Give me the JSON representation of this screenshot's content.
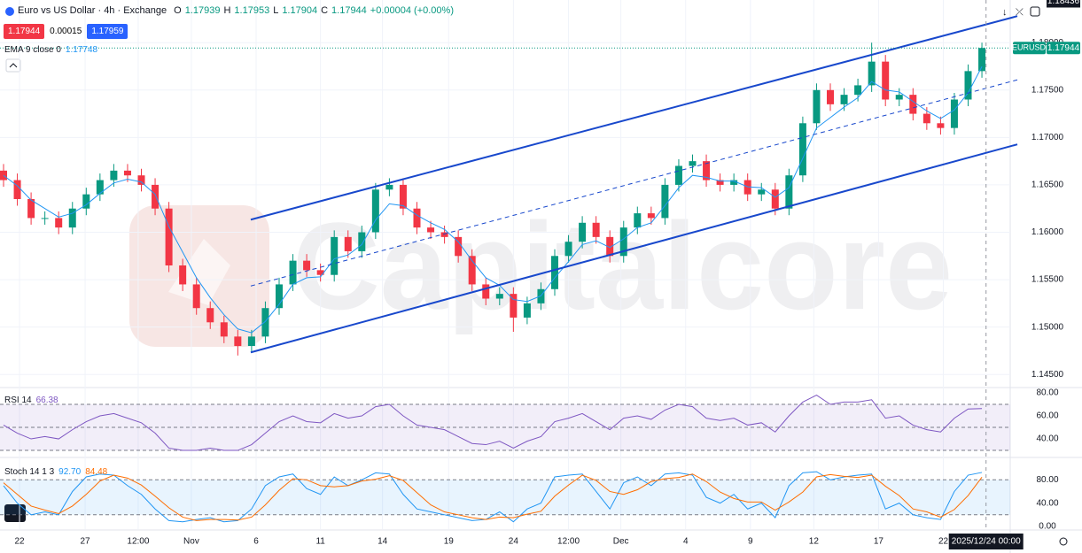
{
  "chart_data": {
    "type": "candlestick",
    "title": "Euro vs US Dollar · 4h · Exchange",
    "header": {
      "labels": [
        "O",
        "H",
        "L",
        "C"
      ],
      "values": [
        1.17939,
        1.17953,
        1.17904,
        1.17944
      ],
      "change": "+0.00004 (+0.00%)"
    },
    "quote": {
      "bid": 1.17944,
      "spread": 0.00015,
      "ask": 1.17959
    },
    "symbol": "EURUSD",
    "up_color": "#089981",
    "down_color": "#f23645",
    "open": [
      1.1665,
      1.1655,
      1.1635,
      1.1615,
      1.1615,
      1.1605,
      1.1625,
      1.164,
      1.1655,
      1.1665,
      1.166,
      1.165,
      1.1625,
      1.1565,
      1.1545,
      1.152,
      1.1505,
      1.149,
      1.148,
      1.149,
      1.152,
      1.1545,
      1.157,
      1.156,
      1.1555,
      1.1595,
      1.158,
      1.16,
      1.1645,
      1.165,
      1.1625,
      1.1605,
      1.16,
      1.1595,
      1.1575,
      1.1545,
      1.153,
      1.1535,
      1.151,
      1.1525,
      1.154,
      1.1575,
      1.159,
      1.161,
      1.1595,
      1.1575,
      1.1605,
      1.162,
      1.1615,
      1.165,
      1.167,
      1.1675,
      1.1655,
      1.165,
      1.1655,
      1.164,
      1.1645,
      1.1625,
      1.166,
      1.1715,
      1.175,
      1.1735,
      1.1745,
      1.1755,
      1.178,
      1.174,
      1.1745,
      1.1725,
      1.1715,
      1.171,
      1.174,
      1.177
    ],
    "high": [
      1.1672,
      1.1662,
      1.1642,
      1.1622,
      1.1622,
      1.1632,
      1.1647,
      1.1662,
      1.1672,
      1.1672,
      1.1667,
      1.1657,
      1.1632,
      1.1572,
      1.1552,
      1.1527,
      1.1512,
      1.1497,
      1.1497,
      1.1527,
      1.1552,
      1.1577,
      1.1577,
      1.1567,
      1.1602,
      1.1602,
      1.1607,
      1.1652,
      1.1657,
      1.1657,
      1.1632,
      1.1612,
      1.1607,
      1.1602,
      1.1582,
      1.1552,
      1.1542,
      1.1542,
      1.1532,
      1.1547,
      1.1582,
      1.1597,
      1.1617,
      1.1617,
      1.1602,
      1.1612,
      1.1627,
      1.1627,
      1.1657,
      1.1677,
      1.1682,
      1.1682,
      1.1662,
      1.1662,
      1.1662,
      1.1652,
      1.1652,
      1.1667,
      1.1722,
      1.1757,
      1.1757,
      1.1752,
      1.1762,
      1.18,
      1.1787,
      1.1752,
      1.1752,
      1.1732,
      1.1722,
      1.1747,
      1.1777,
      1.18
    ],
    "low": [
      1.1648,
      1.1628,
      1.1608,
      1.1608,
      1.1598,
      1.1598,
      1.1618,
      1.1633,
      1.1648,
      1.1653,
      1.1643,
      1.1618,
      1.1558,
      1.1538,
      1.1513,
      1.1498,
      1.1483,
      1.147,
      1.1473,
      1.1483,
      1.1513,
      1.1538,
      1.1553,
      1.1548,
      1.1548,
      1.1573,
      1.1573,
      1.1593,
      1.1638,
      1.1618,
      1.1598,
      1.1593,
      1.1588,
      1.1568,
      1.1538,
      1.1523,
      1.1523,
      1.1495,
      1.1503,
      1.1518,
      1.1533,
      1.1568,
      1.1583,
      1.1588,
      1.1568,
      1.1568,
      1.1598,
      1.1608,
      1.1608,
      1.1643,
      1.1663,
      1.1648,
      1.1643,
      1.1643,
      1.1633,
      1.1633,
      1.1618,
      1.1618,
      1.1653,
      1.1708,
      1.1728,
      1.1728,
      1.1738,
      1.1748,
      1.1733,
      1.1733,
      1.1718,
      1.1708,
      1.1703,
      1.1703,
      1.1733,
      1.1763
    ],
    "close": [
      1.1655,
      1.1635,
      1.1615,
      1.1615,
      1.1605,
      1.1625,
      1.164,
      1.1655,
      1.1665,
      1.166,
      1.165,
      1.1625,
      1.1565,
      1.1545,
      1.152,
      1.1505,
      1.149,
      1.148,
      1.149,
      1.152,
      1.1545,
      1.157,
      1.156,
      1.1555,
      1.1595,
      1.158,
      1.16,
      1.1645,
      1.165,
      1.1625,
      1.1605,
      1.16,
      1.1595,
      1.1575,
      1.1545,
      1.153,
      1.1535,
      1.151,
      1.1525,
      1.154,
      1.1575,
      1.159,
      1.161,
      1.1595,
      1.1575,
      1.1605,
      1.162,
      1.1615,
      1.165,
      1.167,
      1.1675,
      1.1655,
      1.165,
      1.1655,
      1.164,
      1.1645,
      1.1625,
      1.166,
      1.1715,
      1.175,
      1.1735,
      1.1745,
      1.1755,
      1.178,
      1.174,
      1.1745,
      1.1725,
      1.1715,
      1.171,
      1.174,
      1.177,
      1.17944
    ],
    "ylim": [
      1.14362,
      1.1845
    ],
    "yticks": [
      {
        "value": 1.145,
        "label": "1.14500"
      },
      {
        "value": 1.15,
        "label": "1.15000"
      },
      {
        "value": 1.155,
        "label": "1.15500"
      },
      {
        "value": 1.16,
        "label": "1.16000"
      },
      {
        "value": 1.165,
        "label": "1.16500"
      },
      {
        "value": 1.17,
        "label": "1.17000"
      },
      {
        "value": 1.175,
        "label": "1.17500"
      },
      {
        "value": 1.18,
        "label": "1.18000"
      }
    ],
    "xticks": [
      {
        "value": 1.16,
        "label": "22"
      },
      {
        "value": 5.92,
        "label": "27"
      },
      {
        "value": 9.77,
        "label": "12:00"
      },
      {
        "value": 13.63,
        "label": "Nov"
      },
      {
        "value": 18.33,
        "label": "6"
      },
      {
        "value": 23.0,
        "label": "11"
      },
      {
        "value": 27.5,
        "label": "14"
      },
      {
        "value": 32.3,
        "label": "19"
      },
      {
        "value": 37.0,
        "label": "24"
      },
      {
        "value": 41.0,
        "label": "12:00"
      },
      {
        "value": 44.8,
        "label": "Dec"
      },
      {
        "value": 49.5,
        "label": "4"
      },
      {
        "value": 54.2,
        "label": "9"
      },
      {
        "value": 58.8,
        "label": "12"
      },
      {
        "value": 63.5,
        "label": "17"
      },
      {
        "value": 68.2,
        "label": "22"
      }
    ],
    "ema": {
      "name": "EMA 9 close 0",
      "color": "#2196f3",
      "values": [
        1.166,
        1.1649,
        1.1634,
        1.1625,
        1.1616,
        1.162,
        1.1629,
        1.1641,
        1.1652,
        1.1656,
        1.1653,
        1.164,
        1.1606,
        1.1579,
        1.1552,
        1.1531,
        1.1513,
        1.1498,
        1.1494,
        1.1506,
        1.1524,
        1.1545,
        1.1552,
        1.1553,
        1.1572,
        1.1576,
        1.1587,
        1.1613,
        1.163,
        1.1628,
        1.1618,
        1.161,
        1.1603,
        1.159,
        1.157,
        1.1552,
        1.1544,
        1.1529,
        1.1527,
        1.1533,
        1.1552,
        1.1569,
        1.1587,
        1.1591,
        1.1584,
        1.1593,
        1.1605,
        1.161,
        1.1628,
        1.1647,
        1.166,
        1.1658,
        1.1654,
        1.1654,
        1.1648,
        1.1647,
        1.1637,
        1.1647,
        1.1678,
        1.171,
        1.1721,
        1.1732,
        1.1742,
        1.1759,
        1.175,
        1.1748,
        1.1738,
        1.1728,
        1.172,
        1.1729,
        1.1747,
        1.17748
      ]
    },
    "channel": {
      "color": "#1848cc",
      "lines": [
        {
          "x": [
            17.94,
            73.57
          ],
          "y": [
            1.16133,
            1.1828
          ],
          "dashed": false
        },
        {
          "x": [
            17.94,
            73.57
          ],
          "y": [
            1.15433,
            1.17608
          ],
          "dashed": true
        },
        {
          "x": [
            17.94,
            73.57
          ],
          "y": [
            1.14733,
            1.16927
          ],
          "dashed": false
        }
      ]
    },
    "crosshair": {
      "x": 71.3,
      "label": "2025/12/24 00:00",
      "price": 1.18436
    },
    "rsi": {
      "name": "RSI 14",
      "color": "#7e57c2",
      "ylim": [
        26.2,
        84.6
      ],
      "bands": [
        70,
        50,
        30
      ],
      "yticks": [
        {
          "value": 40,
          "label": "40.00"
        },
        {
          "value": 60,
          "label": "60.00"
        },
        {
          "value": 80,
          "label": "80.00"
        }
      ],
      "values": [
        52,
        45,
        40,
        42,
        40,
        48,
        55,
        60,
        62,
        58,
        54,
        45,
        32,
        30,
        30,
        32,
        30,
        30,
        35,
        45,
        55,
        60,
        55,
        54,
        62,
        58,
        60,
        68,
        70,
        60,
        52,
        50,
        48,
        42,
        36,
        35,
        38,
        32,
        38,
        42,
        55,
        58,
        62,
        55,
        48,
        58,
        60,
        57,
        65,
        70,
        68,
        58,
        56,
        58,
        52,
        54,
        46,
        60,
        72,
        78,
        70,
        72,
        72,
        74,
        58,
        60,
        52,
        48,
        46,
        58,
        66,
        66.38
      ]
    },
    "stoch": {
      "name": "Stoch 14 1 3",
      "ylim": [
        -4.6,
        115.4
      ],
      "bands": [
        80,
        20
      ],
      "yticks": [
        {
          "value": 0,
          "label": "0.00"
        },
        {
          "value": 40,
          "label": "40.00"
        },
        {
          "value": 80,
          "label": "80.00"
        }
      ],
      "series": [
        {
          "color": "#2196f3",
          "legend_label": "92.70",
          "values": [
            70,
            40,
            20,
            25,
            20,
            60,
            85,
            90,
            88,
            70,
            55,
            30,
            10,
            8,
            12,
            15,
            8,
            10,
            30,
            70,
            85,
            90,
            65,
            55,
            85,
            70,
            80,
            92,
            90,
            55,
            30,
            25,
            20,
            15,
            10,
            12,
            25,
            8,
            30,
            40,
            85,
            88,
            90,
            60,
            30,
            75,
            85,
            70,
            90,
            92,
            88,
            50,
            40,
            55,
            30,
            40,
            15,
            70,
            92,
            94,
            80,
            85,
            88,
            90,
            30,
            40,
            20,
            15,
            12,
            60,
            88,
            92.7
          ]
        },
        {
          "color": "#ff6d00",
          "legend_label": "84.48",
          "values": [
            75,
            55,
            35,
            28,
            22,
            35,
            55,
            78,
            88,
            83,
            71,
            52,
            32,
            16,
            10,
            12,
            12,
            11,
            16,
            37,
            62,
            82,
            80,
            70,
            68,
            70,
            78,
            81,
            87,
            79,
            58,
            37,
            25,
            20,
            15,
            12,
            16,
            15,
            21,
            26,
            52,
            71,
            88,
            79,
            60,
            55,
            63,
            77,
            82,
            84,
            90,
            77,
            59,
            48,
            42,
            42,
            28,
            42,
            59,
            85,
            89,
            86,
            84,
            88,
            69,
            53,
            30,
            25,
            16,
            29,
            53,
            84.48
          ]
        }
      ]
    },
    "watermark": "Capitalcore"
  }
}
